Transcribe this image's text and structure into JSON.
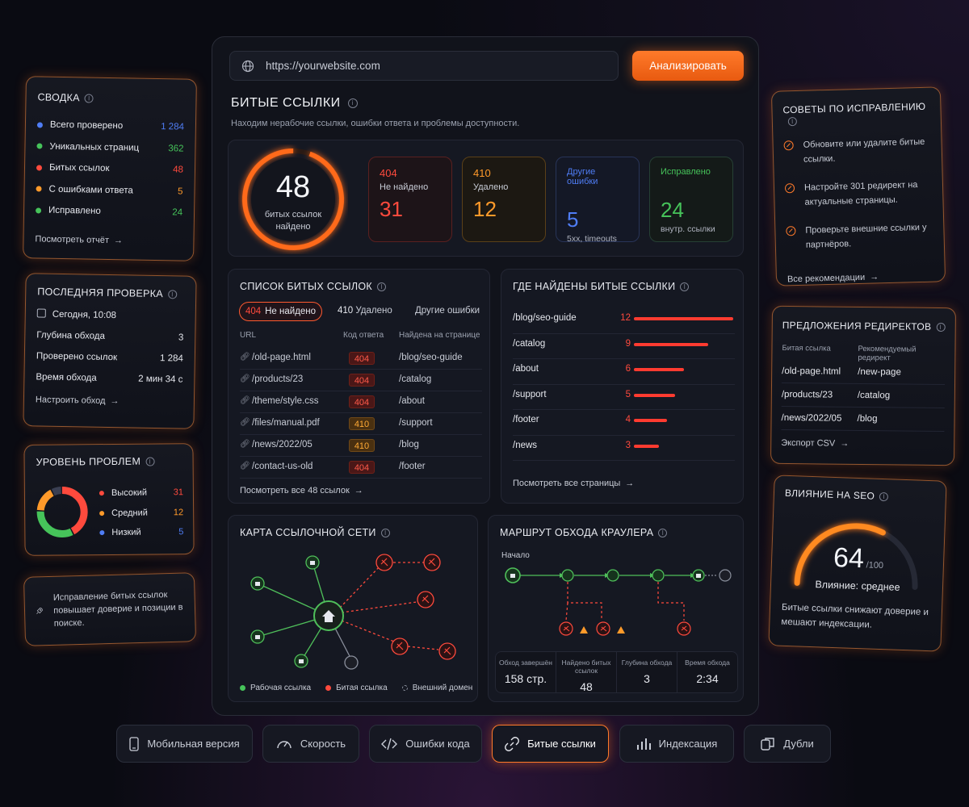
{
  "search": {
    "placeholder": "https://yourwebsite.com",
    "value": "https://yourwebsite.com",
    "button": "Анализировать"
  },
  "header": {
    "title": "БИТЫЕ ССЫЛКИ",
    "subtitle": "Находим нерабочие ссылки, ошибки ответа и проблемы доступности."
  },
  "ring": {
    "value": "48",
    "label1": "битых ссылок",
    "label2": "найдено"
  },
  "stats": [
    {
      "code": "404",
      "label": "Не найдено",
      "value": "31",
      "sub": ""
    },
    {
      "code": "410",
      "label": "Удалено",
      "value": "12",
      "sub": ""
    },
    {
      "code": "",
      "label": "Другие ошибки",
      "value": "5",
      "sub": "5xx, timeouts"
    },
    {
      "code": "",
      "label": "Исправлено",
      "value": "24",
      "sub": "внутр. ссылки"
    }
  ],
  "summary": {
    "title": "СВОДКА",
    "rows": [
      {
        "label": "Всего проверено",
        "value": "1 284",
        "color": "#4f7df5"
      },
      {
        "label": "Уникальных страниц",
        "value": "362",
        "color": "#46c35a"
      },
      {
        "label": "Битых ссылок",
        "value": "48",
        "color": "#ff4a3d"
      },
      {
        "label": "С ошибками ответа",
        "value": "5",
        "color": "#ff9a2a"
      },
      {
        "label": "Исправлено",
        "value": "24",
        "color": "#46c35a"
      }
    ],
    "link": "Посмотреть отчёт"
  },
  "last_check": {
    "title": "ПОСЛЕДНЯЯ ПРОВЕРКА",
    "date": "Сегодня, 10:08",
    "rows": [
      {
        "label": "Глубина обхода",
        "value": "3"
      },
      {
        "label": "Проверено ссылок",
        "value": "1 284"
      },
      {
        "label": "Время обхода",
        "value": "2 мин 34 с"
      }
    ],
    "link": "Настроить обход"
  },
  "levels": {
    "title": "УРОВЕНЬ ПРОБЛЕМ",
    "items": [
      {
        "label": "Высокий",
        "value": "31",
        "color": "#ff4a3d"
      },
      {
        "label": "Средний",
        "value": "12",
        "color": "#ff9a2a"
      },
      {
        "label": "Низкий",
        "value": "5",
        "color": "#4f7df5"
      }
    ],
    "donut_green": 24
  },
  "tip_banner": {
    "text": "Исправление битых ссылок повышает доверие и позиции в поиске."
  },
  "broken_list": {
    "title": "СПИСОК БИТЫХ ССЫЛОК",
    "tabs": [
      {
        "code": "404",
        "label": "Не найдено"
      },
      {
        "code": "410",
        "label": "Удалено"
      },
      {
        "code": "",
        "label": "Другие ошибки"
      }
    ],
    "headers": [
      "URL",
      "Код ответа",
      "Найдена на странице"
    ],
    "rows": [
      {
        "url": "/old-page.html",
        "code": "404",
        "page": "/blog/seo-guide"
      },
      {
        "url": "/products/23",
        "code": "404",
        "page": "/catalog"
      },
      {
        "url": "/theme/style.css",
        "code": "404",
        "page": "/about"
      },
      {
        "url": "/files/manual.pdf",
        "code": "410",
        "page": "/support"
      },
      {
        "url": "/news/2022/05",
        "code": "410",
        "page": "/blog"
      },
      {
        "url": "/contact-us-old",
        "code": "404",
        "page": "/footer"
      }
    ],
    "link": "Посмотреть все 48 ссылок"
  },
  "where_found": {
    "title": "ГДЕ НАЙДЕНЫ БИТЫЕ ССЫЛКИ",
    "rows": [
      {
        "page": "/blog/seo-guide",
        "count": 12
      },
      {
        "page": "/catalog",
        "count": 9
      },
      {
        "page": "/about",
        "count": 6
      },
      {
        "page": "/support",
        "count": 5
      },
      {
        "page": "/footer",
        "count": 4
      },
      {
        "page": "/news",
        "count": 3
      }
    ],
    "link": "Посмотреть все страницы"
  },
  "network": {
    "title": "КАРТА ССЫЛОЧНОЙ СЕТИ",
    "legend": [
      "Рабочая ссылка",
      "Битая ссылка",
      "Внешний домен"
    ]
  },
  "crawl": {
    "title": "МАРШРУТ ОБХОДА КРАУЛЕРА",
    "start": "Начало",
    "stats": [
      {
        "label": "Обход завершён",
        "value": "158 стр."
      },
      {
        "label": "Найдено битых ссылок",
        "value": "48"
      },
      {
        "label": "Глубина обхода",
        "value": "3"
      },
      {
        "label": "Время обхода",
        "value": "2:34"
      }
    ]
  },
  "tips": {
    "title": "СОВЕТЫ ПО ИСПРАВЛЕНИЮ",
    "items": [
      "Обновите или удалите битые ссылки.",
      "Настройте 301 редирект на актуальные страницы.",
      "Проверьте внешние ссылки у партнёров."
    ],
    "link": "Все рекомендации"
  },
  "redirects": {
    "title": "ПРЕДЛОЖЕНИЯ РЕДИРЕКТОВ",
    "headers": [
      "Битая ссылка",
      "Рекомендуемый редирект"
    ],
    "rows": [
      {
        "from": "/old-page.html",
        "to": "/new-page"
      },
      {
        "from": "/products/23",
        "to": "/catalog"
      },
      {
        "from": "/news/2022/05",
        "to": "/blog"
      }
    ],
    "link": "Экспорт CSV"
  },
  "seo": {
    "title": "ВЛИЯНИЕ НА SEO",
    "score": "64",
    "max": "/100",
    "score_value": 64,
    "label": "Влияние: среднее",
    "note": "Битые ссылки снижают доверие и мешают индексации."
  },
  "bottom_tabs": [
    "Мобильная версия",
    "Скорость",
    "Ошибки кода",
    "Битые ссылки",
    "Индексация",
    "Дубли"
  ]
}
